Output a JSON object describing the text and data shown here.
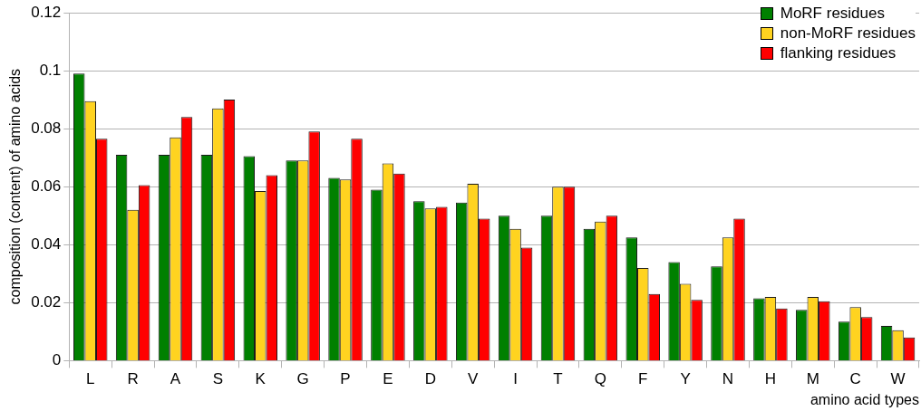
{
  "chart_data": {
    "type": "bar",
    "xlabel": "amino acid types",
    "ylabel": "composition (content) of amino acids",
    "categories": [
      "L",
      "R",
      "A",
      "S",
      "K",
      "G",
      "P",
      "E",
      "D",
      "V",
      "I",
      "T",
      "Q",
      "F",
      "Y",
      "N",
      "H",
      "M",
      "C",
      "W"
    ],
    "series": [
      {
        "name": "MoRF residues",
        "color": "#008000",
        "values": [
          0.099,
          0.071,
          0.071,
          0.071,
          0.0705,
          0.069,
          0.063,
          0.059,
          0.055,
          0.0545,
          0.05,
          0.05,
          0.0455,
          0.0425,
          0.034,
          0.0325,
          0.0215,
          0.0175,
          0.0135,
          0.012
        ]
      },
      {
        "name": "non-MoRF residues",
        "color": "#ffd320",
        "values": [
          0.0895,
          0.052,
          0.077,
          0.087,
          0.0585,
          0.069,
          0.0625,
          0.068,
          0.0525,
          0.061,
          0.0455,
          0.06,
          0.048,
          0.032,
          0.0265,
          0.0425,
          0.022,
          0.022,
          0.0185,
          0.0105
        ]
      },
      {
        "name": "flanking residues",
        "color": "#ff0000",
        "values": [
          0.0765,
          0.0605,
          0.084,
          0.09,
          0.064,
          0.079,
          0.0765,
          0.0645,
          0.053,
          0.049,
          0.039,
          0.06,
          0.05,
          0.023,
          0.021,
          0.049,
          0.018,
          0.0205,
          0.015,
          0.008
        ]
      }
    ],
    "ylim": [
      0,
      0.12
    ],
    "yticks": [
      0,
      0.02,
      0.04,
      0.06,
      0.08,
      0.1,
      0.12
    ],
    "grid": "y",
    "legend": "top right"
  }
}
